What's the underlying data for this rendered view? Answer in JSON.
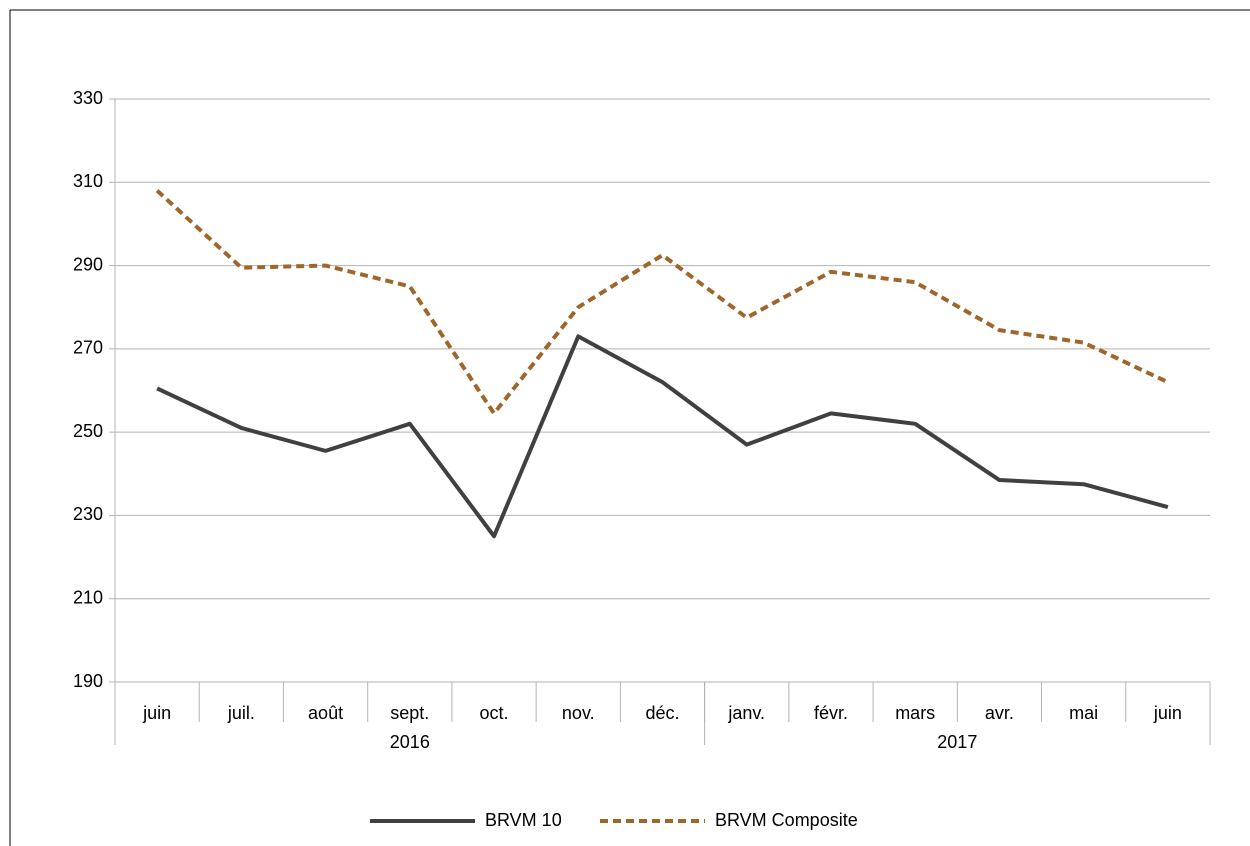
{
  "chart_data": {
    "type": "line",
    "categories": [
      "juin",
      "juil.",
      "août",
      "sept.",
      "oct.",
      "nov.",
      "déc.",
      "janv.",
      "févr.",
      "mars",
      "avr.",
      "mai",
      "juin"
    ],
    "groups": [
      {
        "label": "2016",
        "span": 7
      },
      {
        "label": "2017",
        "span": 6
      }
    ],
    "series": [
      {
        "name": "BRVM 10",
        "color": "#404040",
        "dash": "solid",
        "values": [
          260.5,
          251,
          245.5,
          252,
          225,
          273,
          262,
          247,
          254.5,
          252,
          238.5,
          237.5,
          232
        ]
      },
      {
        "name": "BRVM Composite",
        "color": "#a0652a",
        "dash": "dashed",
        "values": [
          308,
          289.5,
          290,
          285,
          254.5,
          280,
          292.5,
          277.5,
          288.5,
          286,
          274.5,
          271.5,
          262
        ]
      }
    ],
    "ylim": [
      190,
      330
    ],
    "yticks": [
      190,
      210,
      230,
      250,
      270,
      290,
      310,
      330
    ],
    "grid": true,
    "legend": "bottom"
  }
}
